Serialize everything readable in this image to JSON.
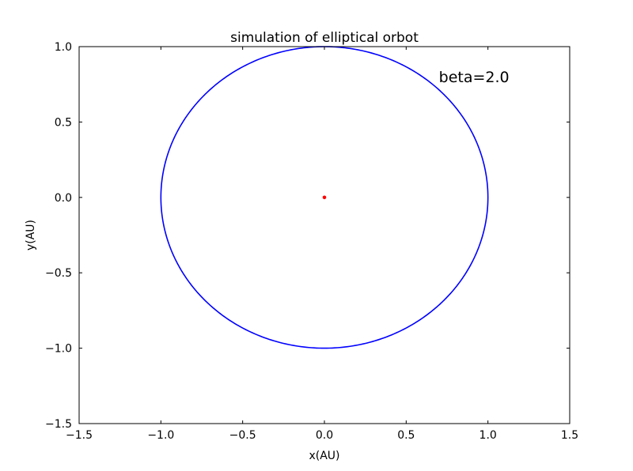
{
  "chart_data": {
    "type": "line",
    "title": "simulation of elliptical orbot",
    "xlabel": "x(AU)",
    "ylabel": "y(AU)",
    "xlim": [
      -1.5,
      1.5
    ],
    "ylim": [
      -1.5,
      1.0
    ],
    "x_ticks": [
      -1.5,
      -1.0,
      -0.5,
      0.0,
      0.5,
      1.0,
      1.5
    ],
    "x_tick_labels": [
      "−1.5",
      "−1.0",
      "−0.5",
      "0.0",
      "0.5",
      "1.0",
      "1.5"
    ],
    "y_ticks": [
      -1.5,
      -1.0,
      -0.5,
      0.0,
      0.5,
      1.0
    ],
    "y_tick_labels": [
      "−1.5",
      "−1.0",
      "−0.5",
      "0.0",
      "0.5",
      "1.0"
    ],
    "grid": false,
    "legend": "none",
    "annotation": {
      "text": "beta=2.0",
      "x": 0.7,
      "y": 0.8
    },
    "series": [
      {
        "kind": "orbit",
        "color": "#0000ff",
        "semi_major_x": 1.0,
        "semi_minor_y": 1.0,
        "center": [
          0.0,
          0.0
        ]
      },
      {
        "kind": "point",
        "color": "#ff0000",
        "x": 0.0,
        "y": 0.0
      }
    ]
  }
}
